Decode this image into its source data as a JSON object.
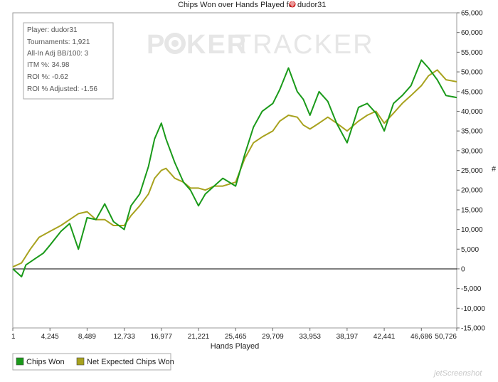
{
  "chart_data": {
    "type": "line",
    "title": "Chips Won over Hands Played for",
    "title_player": "dudor31",
    "xlabel": "Hands Played",
    "ylabel": "#",
    "xlim": [
      1,
      50726
    ],
    "ylim": [
      -15000,
      65000
    ],
    "x_ticks": [
      "1",
      "4,245",
      "8,489",
      "12,733",
      "16,977",
      "21,221",
      "25,465",
      "29,709",
      "33,953",
      "38,197",
      "42,441",
      "46,686",
      "50,726"
    ],
    "y_ticks": [
      "65,000",
      "60,000",
      "55,000",
      "50,000",
      "45,000",
      "40,000",
      "35,000",
      "30,000",
      "25,000",
      "20,000",
      "15,000",
      "10,000",
      "5,000",
      "0",
      "-5,000",
      "-10,000",
      "-15,000"
    ],
    "grid": false,
    "legend_position": "bottom-left",
    "colors": {
      "chips_won": "#1a9a1a",
      "net_expected": "#a8a21e"
    },
    "series": [
      {
        "name": "Chips Won",
        "x": [
          1,
          1000,
          1500,
          2500,
          3500,
          4245,
          5500,
          6500,
          7500,
          8489,
          9500,
          10500,
          11500,
          12733,
          13500,
          14500,
          15500,
          16200,
          16977,
          17500,
          18500,
          19500,
          20300,
          21221,
          22000,
          23000,
          24000,
          25465,
          26500,
          27500,
          28500,
          29709,
          30500,
          31500,
          32500,
          33200,
          33953,
          35000,
          36000,
          37000,
          38197,
          39500,
          40500,
          41500,
          42441,
          43500,
          44500,
          45500,
          46686,
          47500,
          48500,
          49500,
          50726
        ],
        "y": [
          0,
          -2000,
          1000,
          2500,
          4000,
          6000,
          9500,
          11500,
          5000,
          13000,
          12500,
          16500,
          12000,
          10000,
          16000,
          19000,
          26000,
          33000,
          37000,
          33000,
          27000,
          22000,
          20000,
          16000,
          19000,
          21000,
          23000,
          21000,
          29000,
          36000,
          40000,
          42000,
          45500,
          51000,
          45000,
          43000,
          39000,
          45000,
          42500,
          37000,
          32000,
          41000,
          42000,
          39500,
          35000,
          42000,
          44000,
          46500,
          53000,
          51000,
          48000,
          44000,
          43500
        ]
      },
      {
        "name": "Net Expected Chips Won",
        "x": [
          1,
          1000,
          2000,
          3000,
          4245,
          5500,
          6500,
          7500,
          8489,
          9500,
          10500,
          11500,
          12733,
          13500,
          14500,
          15500,
          16200,
          16977,
          17500,
          18500,
          19500,
          20300,
          21221,
          22000,
          23000,
          24000,
          25465,
          26500,
          27500,
          28500,
          29709,
          30500,
          31500,
          32500,
          33200,
          33953,
          35000,
          36000,
          37000,
          38197,
          39500,
          40500,
          41500,
          42441,
          43500,
          44500,
          45500,
          46686,
          47500,
          48500,
          49500,
          50726
        ],
        "y": [
          500,
          1500,
          5000,
          8000,
          9500,
          11000,
          12500,
          14000,
          14500,
          12500,
          12500,
          11000,
          11000,
          13500,
          16000,
          19000,
          23000,
          25000,
          25500,
          23000,
          22000,
          20500,
          20500,
          20000,
          21000,
          21000,
          22000,
          28000,
          32000,
          33500,
          35000,
          37500,
          39000,
          38500,
          36500,
          35500,
          37000,
          38500,
          37000,
          35000,
          37500,
          39000,
          40000,
          37000,
          39500,
          42000,
          44000,
          46500,
          49000,
          50500,
          48000,
          47500
        ]
      }
    ]
  },
  "stats": {
    "player": "Player: dudor31",
    "tournaments": "Tournaments: 1,921",
    "allin": "All-In Adj BB/100: 3",
    "itm": "ITM %: 34.98",
    "roi": "ROI %: -0.62",
    "roi_adj": "ROI % Adjusted: -1.56"
  },
  "watermark": {
    "left": "P",
    "right": "KER",
    "tracker": "TRACKER"
  },
  "legend": {
    "chips_won": "Chips Won",
    "net_expected": "Net Expected Chips Won"
  },
  "footer_brand": "jetScreenshot"
}
